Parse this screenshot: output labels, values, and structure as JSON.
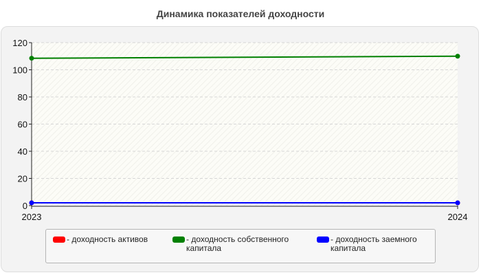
{
  "page": {
    "title": "Динамика показателей доходности"
  },
  "chart_data": {
    "type": "line",
    "title": "Динамика показателей доходности",
    "x": [
      "2023",
      "2024"
    ],
    "ylim": [
      0,
      120
    ],
    "yticks": [
      0,
      20,
      40,
      60,
      80,
      100,
      120
    ],
    "grid": true,
    "legend_position": "bottom",
    "series": [
      {
        "name": "- доходность активов",
        "color": "#ff0000",
        "values": [
          2,
          2
        ]
      },
      {
        "name": "- доходность собственного капитала",
        "color": "#008000",
        "values": [
          108.5,
          110
        ]
      },
      {
        "name": "- доходность заемного капитала",
        "color": "#0000ff",
        "values": [
          2,
          2
        ]
      }
    ]
  }
}
